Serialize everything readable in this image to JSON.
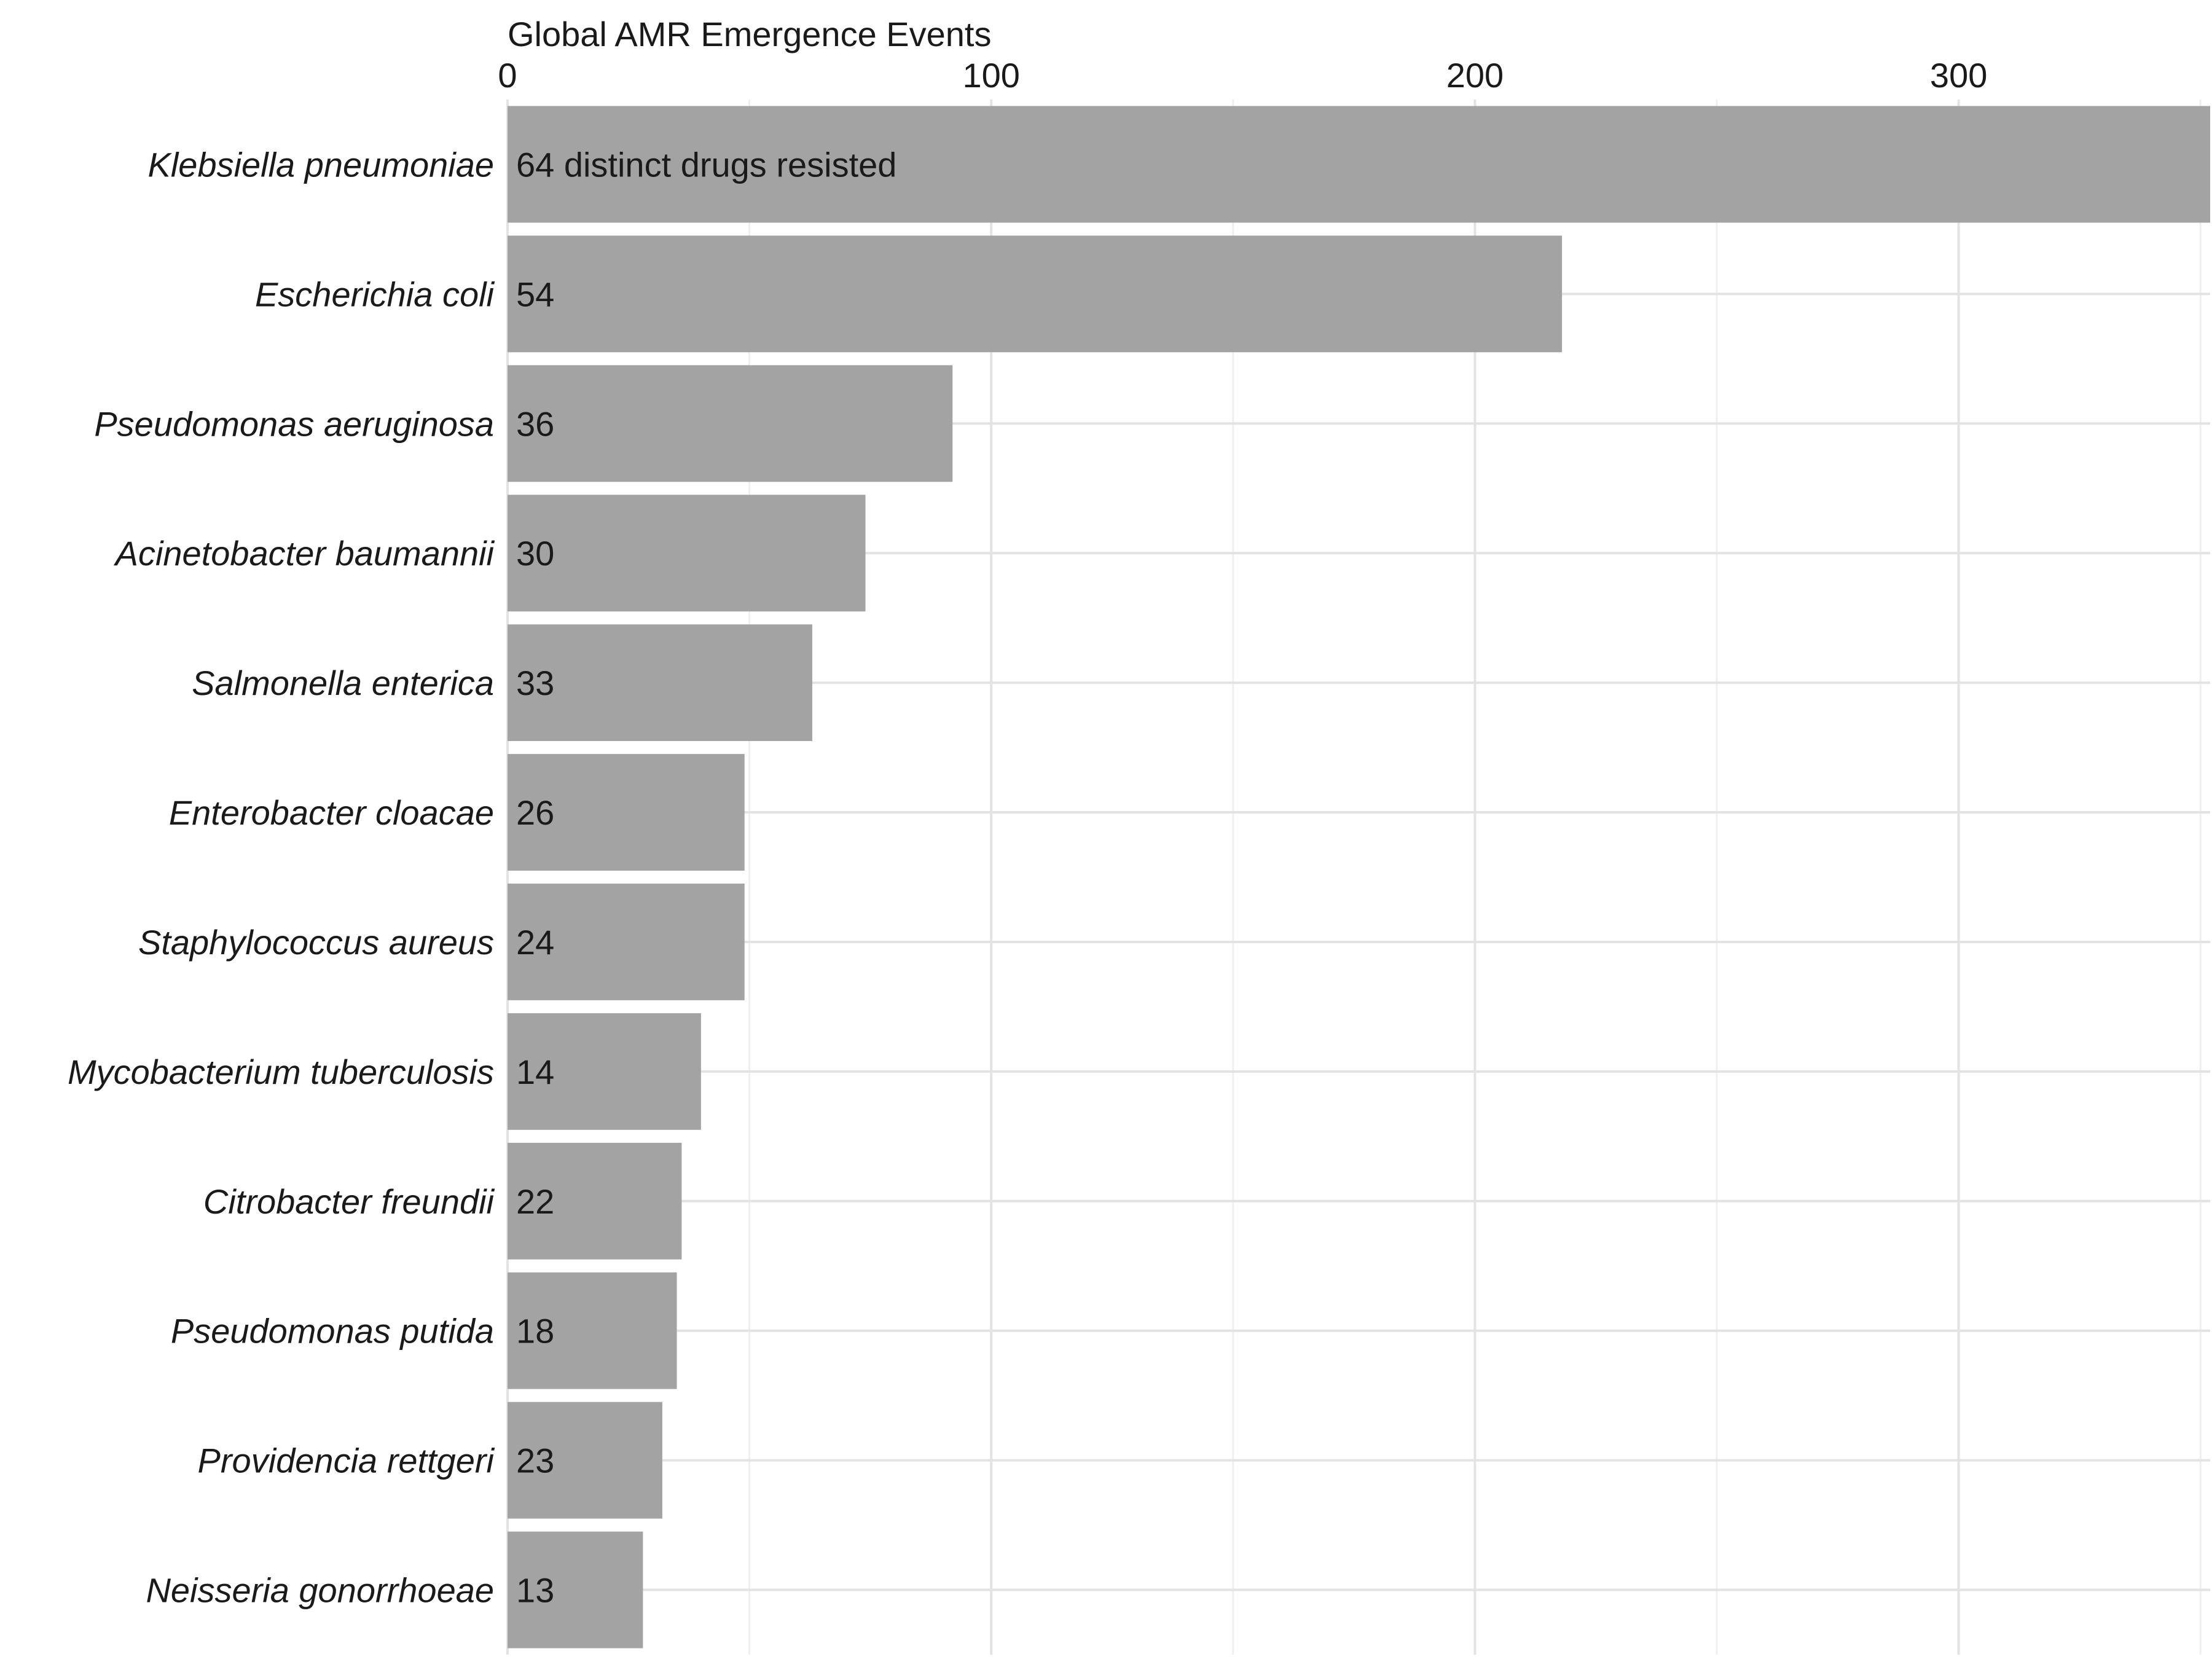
{
  "chart_data": {
    "type": "bar",
    "orientation": "horizontal",
    "x_axis_position": "top",
    "title": "Global AMR Emergence Events",
    "xlabel": "Global AMR Emergence Events",
    "ylabel": "",
    "xlim": [
      0,
      352
    ],
    "x_ticks": [
      0,
      100,
      200,
      300
    ],
    "bar_color": "#a3a3a3",
    "grid": true,
    "categories": [
      "Klebsiella pneumoniae",
      "Escherichia coli",
      "Pseudomonas aeruginosa",
      "Acinetobacter baumannii",
      "Salmonella enterica",
      "Enterobacter cloacae",
      "Staphylococcus aureus",
      "Mycobacterium tuberculosis",
      "Citrobacter freundii",
      "Pseudomonas putida",
      "Providencia rettgeri",
      "Neisseria gonorrhoeae"
    ],
    "values": [
      352,
      218,
      92,
      74,
      63,
      49,
      49,
      40,
      36,
      35,
      32,
      28
    ],
    "bar_labels": [
      "64 distinct drugs resisted",
      "54",
      "36",
      "30",
      "33",
      "26",
      "24",
      "14",
      "22",
      "18",
      "23",
      "13"
    ]
  }
}
